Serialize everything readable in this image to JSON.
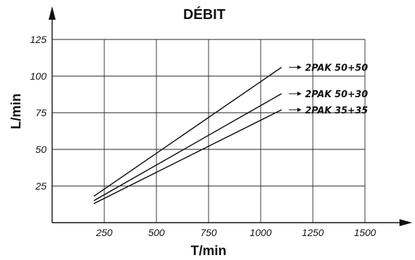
{
  "chart_data": {
    "type": "line",
    "title": "DÉBIT",
    "xlabel": "T/min",
    "ylabel": "L/min",
    "xlim": [
      0,
      1500
    ],
    "ylim": [
      0,
      125
    ],
    "xticks": [
      250,
      500,
      750,
      1000,
      1250,
      1500
    ],
    "yticks": [
      25,
      50,
      75,
      100,
      125
    ],
    "grid": true,
    "series": [
      {
        "name": "2PAK 50+50",
        "x": [
          200,
          1100
        ],
        "y": [
          18,
          106
        ]
      },
      {
        "name": "2PAK 50+30",
        "x": [
          200,
          1100
        ],
        "y": [
          15,
          88
        ]
      },
      {
        "name": "2PAK 35+35",
        "x": [
          200,
          1100
        ],
        "y": [
          13,
          77
        ]
      }
    ]
  }
}
